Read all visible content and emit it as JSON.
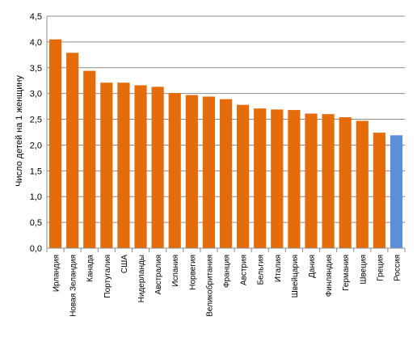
{
  "chart_data": {
    "type": "bar",
    "ylabel": "Число детей на 1 женщину",
    "xlabel": "",
    "ylim": [
      0,
      4.5
    ],
    "ytick_step": 0.5,
    "ytick_labels": [
      "0,0",
      "0,5",
      "1,0",
      "1,5",
      "2,0",
      "2,5",
      "3,0",
      "3,5",
      "4,0",
      "4,5"
    ],
    "grid": true,
    "legend": "none",
    "categories": [
      "Ирландия",
      "Новая Зеландия",
      "Канада",
      "Португалия",
      "США",
      "Нидерланды",
      "Австралия",
      "Испания",
      "Норвегия",
      "Великобритания",
      "Франция",
      "Австрия",
      "Бельгия",
      "Италия",
      "Швейцария",
      "Дания",
      "Финляндия",
      "Германия",
      "Швеция",
      "Греция",
      "Россия"
    ],
    "values": [
      4.05,
      3.79,
      3.44,
      3.21,
      3.21,
      3.16,
      3.13,
      3.01,
      2.97,
      2.94,
      2.89,
      2.78,
      2.71,
      2.69,
      2.68,
      2.61,
      2.6,
      2.54,
      2.47,
      2.24,
      2.19
    ],
    "colors": {
      "default": "#E46C0A",
      "highlight": "#5B8FD9",
      "highlight_category": "Россия",
      "grid": "#8C8C8C",
      "axis": "#8C8C8C"
    }
  }
}
